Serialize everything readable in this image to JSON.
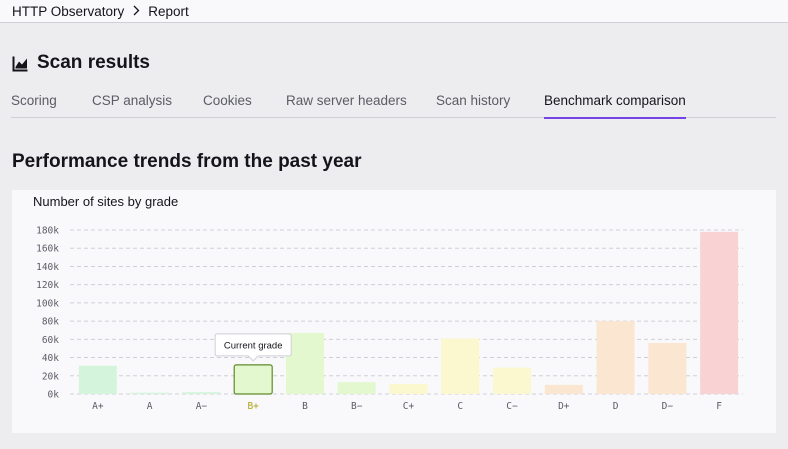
{
  "breadcrumb": {
    "root": "HTTP Observatory",
    "current": "Report"
  },
  "page": {
    "title": "Scan results",
    "icon": "line-chart-icon"
  },
  "tabs": [
    {
      "label": "Scoring",
      "active": false
    },
    {
      "label": "CSP analysis",
      "active": false
    },
    {
      "label": "Cookies",
      "active": false
    },
    {
      "label": "Raw server headers",
      "active": false
    },
    {
      "label": "Scan history",
      "active": false
    },
    {
      "label": "Benchmark comparison",
      "active": true
    }
  ],
  "section": {
    "title": "Performance trends from the past year"
  },
  "colors": {
    "accent": "#7542e5",
    "grade_a": "#d4f5dc",
    "grade_b": "#e4f8cf",
    "grade_c": "#fbf7cf",
    "grade_d": "#fae6d1",
    "grade_f": "#f9d3d3",
    "current_border": "#5f8a2a"
  },
  "chart_data": {
    "type": "bar",
    "title": "Number of sites by grade",
    "categories": [
      "A+",
      "A",
      "A−",
      "B+",
      "B",
      "B−",
      "C+",
      "C",
      "C−",
      "D+",
      "D",
      "D−",
      "F"
    ],
    "values": [
      31000,
      1500,
      2000,
      32000,
      67000,
      13000,
      11000,
      61000,
      29000,
      10000,
      80000,
      56000,
      178000
    ],
    "bar_colors": [
      "#d4f5dc",
      "#d4f5dc",
      "#d4f5dc",
      "#e4f8cf",
      "#e4f8cf",
      "#e4f8cf",
      "#fbf7cf",
      "#fbf7cf",
      "#fbf7cf",
      "#fae6d1",
      "#fae6d1",
      "#fae6d1",
      "#f9d3d3"
    ],
    "ylim": [
      0,
      180000
    ],
    "yticks": [
      "0k",
      "20k",
      "40k",
      "60k",
      "80k",
      "100k",
      "120k",
      "140k",
      "160k",
      "180k"
    ],
    "grid": true,
    "current_grade": "B+",
    "tooltip": "Current grade"
  }
}
